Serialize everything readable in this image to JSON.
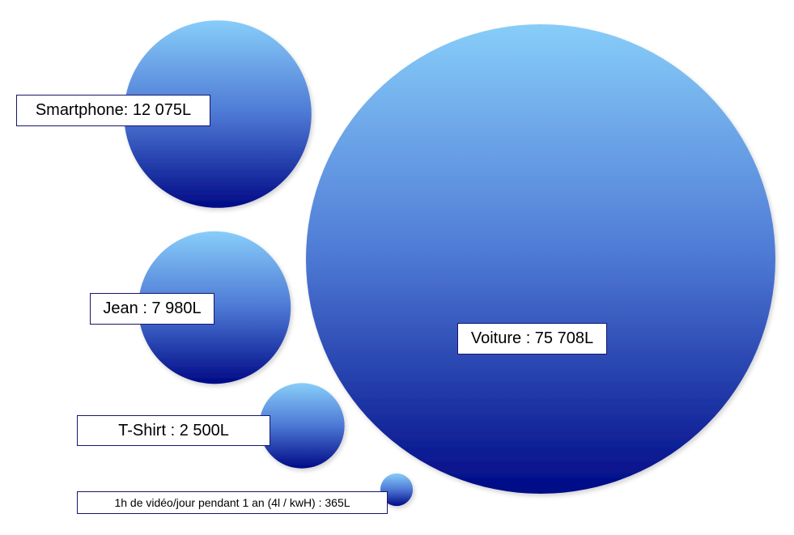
{
  "chart_data": {
    "type": "bubble",
    "unit": "L",
    "items": [
      {
        "label": "Smartphone: 12 075L",
        "value": 12075
      },
      {
        "label": "Jean : 7 980L",
        "value": 7980
      },
      {
        "label": "T-Shirt : 2 500L",
        "value": 2500
      },
      {
        "label": "1h de vidéo/jour pendant 1 an (4l / kwH) : 365L",
        "value": 365
      },
      {
        "label": "Voiture : 75 708L",
        "value": 75708
      }
    ]
  },
  "colors": {
    "bubble_top": "#87cdf9",
    "bubble_mid": "#4d78d4",
    "bubble_bottom": "#000a86",
    "label_border": "#16166e"
  }
}
